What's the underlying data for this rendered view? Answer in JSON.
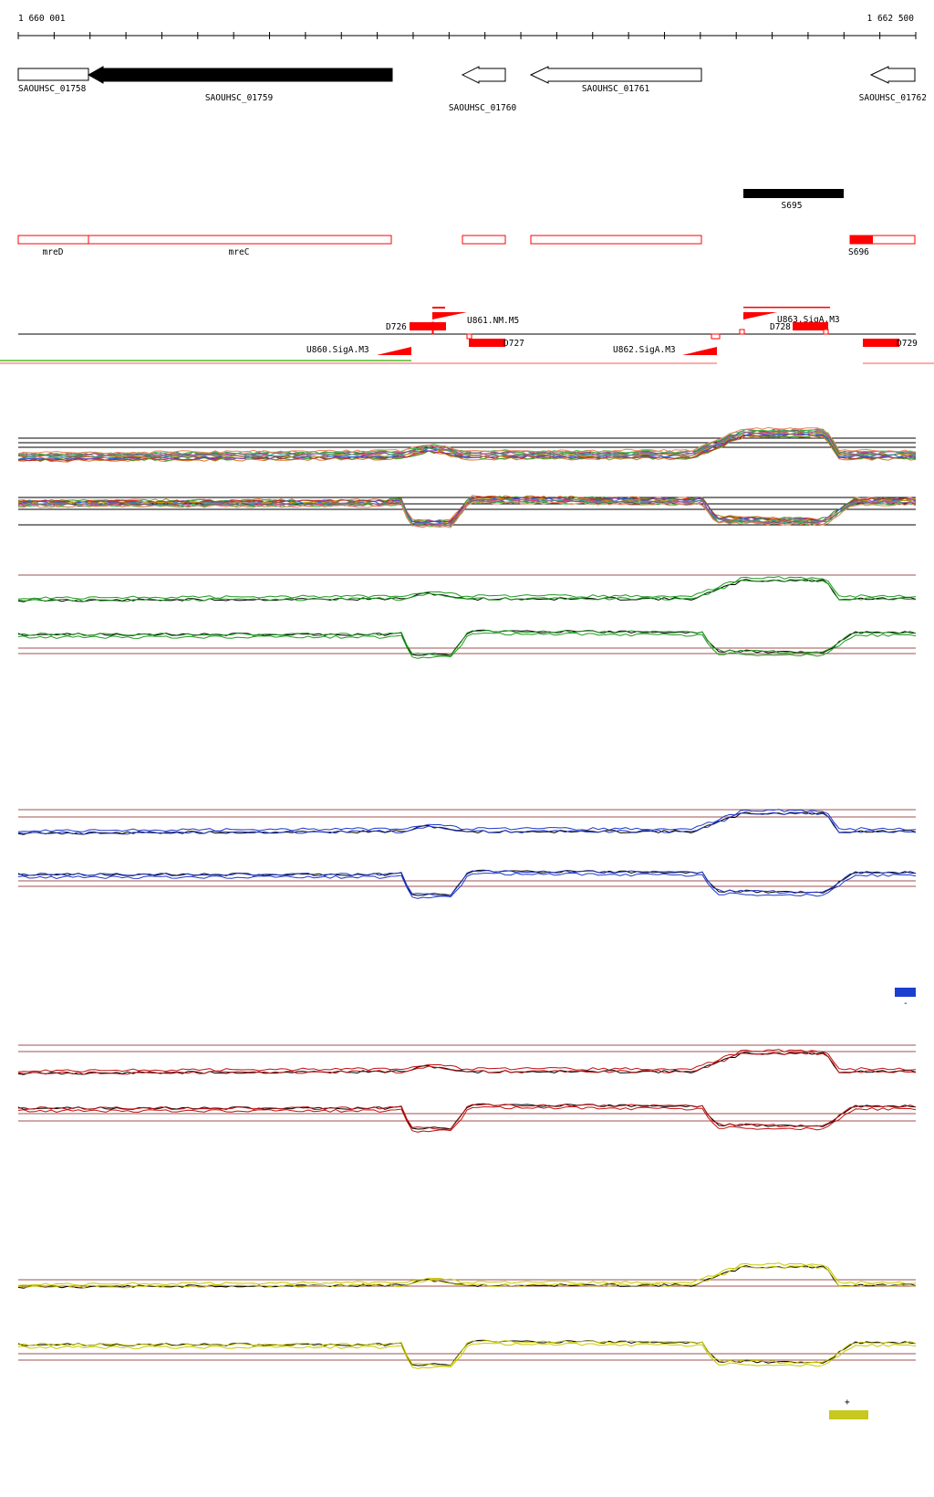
{
  "coords": {
    "start": "1 660 001",
    "end": "1 662 500"
  },
  "genes": [
    {
      "label": "SAOUHSC_01758"
    },
    {
      "label": "SAOUHSC_01759"
    },
    {
      "label": "SAOUHSC_01760"
    },
    {
      "label": "SAOUHSC_01761"
    },
    {
      "label": "SAOUHSC_01762"
    }
  ],
  "annotations": {
    "black_feature": "S695",
    "red_features": [
      "mreD",
      "mreC",
      "S696"
    ]
  },
  "transcription": {
    "segments": [
      "D726",
      "D727",
      "D728",
      "D729"
    ],
    "promoters": [
      "U860.SigA.M3",
      "U861.NM.M5",
      "U862.SigA.M3",
      "U863.SigA.M3"
    ]
  },
  "legends": {
    "minus": "-",
    "plus": "+"
  },
  "colors": {
    "gene_fill_highlight": "#000000",
    "annotation_red": "#ff0000",
    "strand_green": "#7ccc5c",
    "strand_red": "#ff5555",
    "track_green": "#1f9a1f",
    "track_blue": "#2038c8",
    "track_red": "#c01010",
    "track_yellow": "#c8c800",
    "legend_blue": "#1a3fcf",
    "legend_yellow": "#c8c81e"
  }
}
